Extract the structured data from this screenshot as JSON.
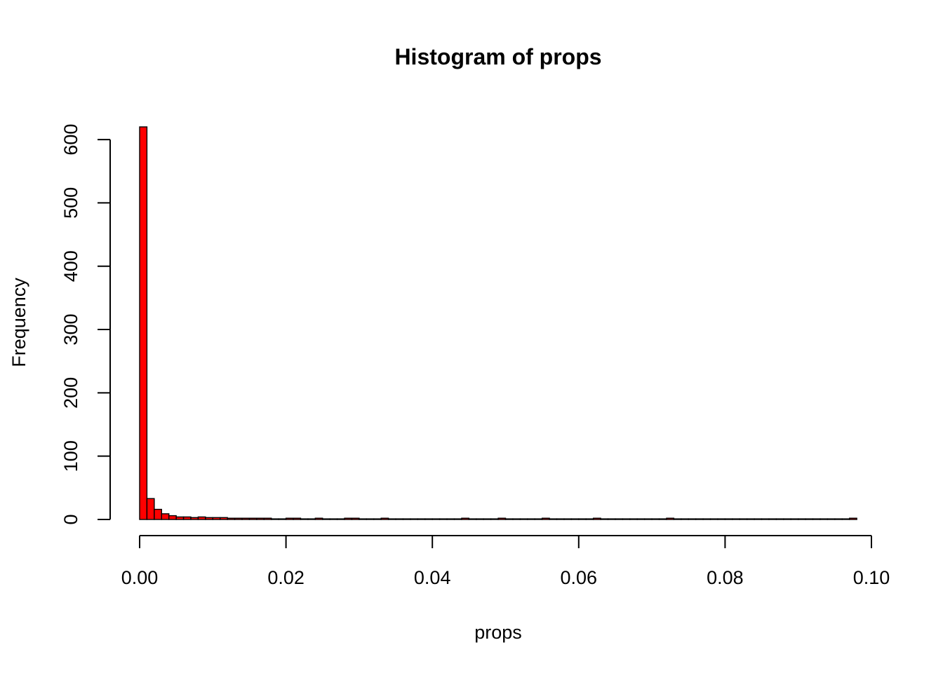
{
  "chart_data": {
    "type": "bar",
    "title": "Histogram of props",
    "xlabel": "props",
    "ylabel": "Frequency",
    "xlim": [
      0,
      0.1
    ],
    "ylim": [
      0,
      620
    ],
    "x_ticks": [
      "0.00",
      "0.02",
      "0.04",
      "0.06",
      "0.08",
      "0.10"
    ],
    "y_ticks": [
      "0",
      "100",
      "200",
      "300",
      "400",
      "500",
      "600"
    ],
    "bin_width": 0.001,
    "bin_start": 0,
    "values": [
      620,
      33,
      16,
      9,
      6,
      4,
      4,
      3,
      4,
      3,
      3,
      3,
      2,
      2,
      2,
      2,
      2,
      2,
      1,
      1,
      2,
      2,
      1,
      1,
      2,
      1,
      1,
      1,
      2,
      2,
      1,
      1,
      1,
      2,
      1,
      1,
      1,
      1,
      1,
      1,
      1,
      1,
      1,
      1,
      2,
      1,
      1,
      1,
      1,
      2,
      1,
      1,
      1,
      1,
      1,
      2,
      1,
      1,
      1,
      1,
      1,
      1,
      2,
      1,
      1,
      1,
      1,
      1,
      1,
      1,
      1,
      1,
      2,
      1,
      1,
      1,
      1,
      1,
      1,
      1,
      1,
      1,
      1,
      1,
      1,
      1,
      1,
      1,
      1,
      1,
      1,
      1,
      1,
      1,
      1,
      1,
      1,
      2
    ],
    "bar_color": "#ff0000",
    "grid": false,
    "legend": "none"
  }
}
